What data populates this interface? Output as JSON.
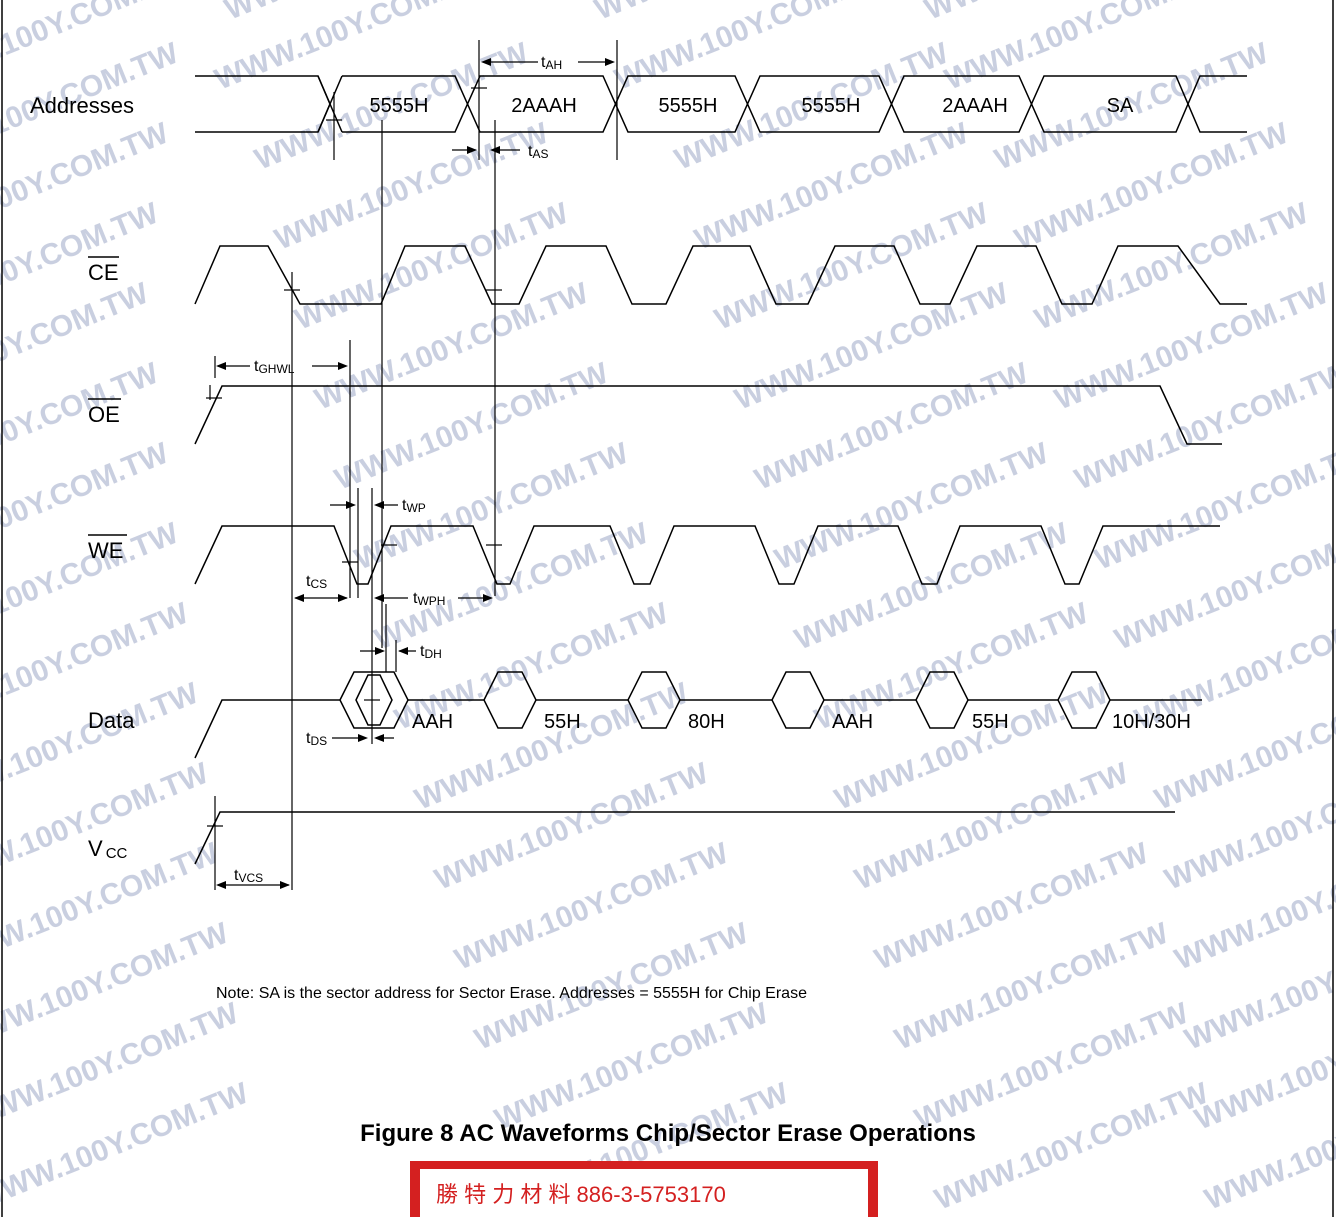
{
  "signals": {
    "addresses": "Addresses",
    "ce": "CE",
    "oe": "OE",
    "we": "WE",
    "data": "Data",
    "vcc_main": "V",
    "vcc_sub": "CC"
  },
  "address_values": [
    "5555H",
    "2AAAH",
    "5555H",
    "5555H",
    "2AAAH",
    "SA"
  ],
  "data_values": [
    "AAH",
    "55H",
    "80H",
    "AAH",
    "55H",
    "10H/30H"
  ],
  "timing": {
    "tah": {
      "main": "t",
      "sub": "AH"
    },
    "tas": {
      "main": "t",
      "sub": "AS"
    },
    "tghwl": {
      "main": "t",
      "sub": "GHWL"
    },
    "twp": {
      "main": "t",
      "sub": "WP"
    },
    "tcs": {
      "main": "t",
      "sub": "CS"
    },
    "twph": {
      "main": "t",
      "sub": "WPH"
    },
    "tdh": {
      "main": "t",
      "sub": "DH"
    },
    "tds": {
      "main": "t",
      "sub": "DS"
    },
    "tvcs": {
      "main": "t",
      "sub": "VCS"
    }
  },
  "note": "Note: SA is the sector address for Sector Erase. Addresses = 5555H for Chip Erase",
  "caption": "Figure 8  AC Waveforms Chip/Sector Erase Operations",
  "stamp": "勝 特 力 材 料 886-3-5753170",
  "watermark": "WWW.100Y.COM.TW",
  "colors": {
    "line": "#000000",
    "stamp": "#d42020",
    "watermark": "#c9cfe0"
  }
}
